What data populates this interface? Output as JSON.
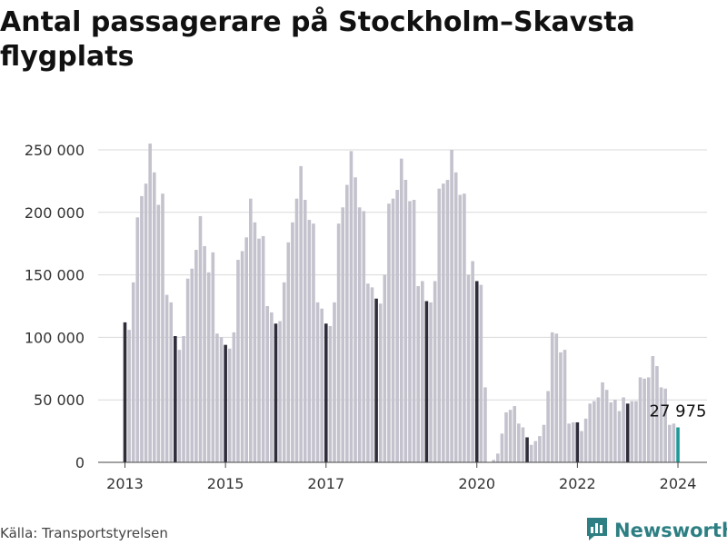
{
  "title": "Antal passagerare på Stockholm–Skavsta flygplats",
  "source": "Källa: Transportstyrelsen",
  "brand": {
    "name": "Newsworthy",
    "icon": "newsworthy-logo-icon"
  },
  "colors": {
    "bar": "#c3c2cd",
    "january": "#2f2d3a",
    "latest": "#1d9a98",
    "grid": "#d9d9d9",
    "brand": "#2d7f83"
  },
  "chart_data": {
    "type": "bar",
    "title": "Antal passagerare på Stockholm–Skavsta flygplats",
    "xlabel": "",
    "ylabel": "",
    "ylim": [
      0,
      260000
    ],
    "yticks": [
      0,
      50000,
      100000,
      150000,
      200000,
      250000
    ],
    "ytick_labels": [
      "0",
      "50 000",
      "100 000",
      "150 000",
      "200 000",
      "250 000"
    ],
    "xtick_labels": [
      "2013",
      "2015",
      "2017",
      "2020",
      "2022",
      "2024"
    ],
    "grid": true,
    "callout": {
      "label": "27 975",
      "value": 27975
    },
    "series": [
      {
        "year": 2013,
        "values": [
          112000,
          106000,
          144000,
          196000,
          213000,
          223000,
          255000,
          232000,
          206000,
          215000,
          134000,
          128000
        ]
      },
      {
        "year": 2014,
        "values": [
          101000,
          90000,
          101000,
          147000,
          155000,
          170000,
          197000,
          173000,
          152000,
          168000,
          103000,
          100000
        ]
      },
      {
        "year": 2015,
        "values": [
          94000,
          91000,
          104000,
          162000,
          169000,
          180000,
          211000,
          192000,
          179000,
          181000,
          125000,
          120000
        ]
      },
      {
        "year": 2016,
        "values": [
          111000,
          113000,
          144000,
          176000,
          192000,
          211000,
          237000,
          210000,
          194000,
          191000,
          128000,
          123000
        ]
      },
      {
        "year": 2017,
        "values": [
          111000,
          109000,
          128000,
          191000,
          204000,
          222000,
          249000,
          228000,
          204000,
          201000,
          143000,
          140000
        ]
      },
      {
        "year": 2018,
        "values": [
          131000,
          127000,
          150000,
          207000,
          211000,
          218000,
          243000,
          226000,
          209000,
          210000,
          141000,
          145000
        ]
      },
      {
        "year": 2019,
        "values": [
          129000,
          128000,
          145000,
          219000,
          223000,
          226000,
          250000,
          232000,
          214000,
          215000,
          150000,
          161000
        ]
      },
      {
        "year": 2020,
        "values": [
          145000,
          142000,
          60000,
          0,
          2000,
          7000,
          23000,
          40000,
          42000,
          45000,
          31000,
          28000
        ]
      },
      {
        "year": 2021,
        "values": [
          20000,
          14000,
          17000,
          21000,
          30000,
          57000,
          104000,
          103000,
          88000,
          90000,
          31000,
          32000
        ]
      },
      {
        "year": 2022,
        "values": [
          32000,
          25000,
          35000,
          47000,
          49000,
          52000,
          64000,
          58000,
          48000,
          50000,
          41000,
          52000
        ]
      },
      {
        "year": 2023,
        "values": [
          47000,
          49000,
          49000,
          68000,
          67000,
          68000,
          85000,
          77000,
          60000,
          59000,
          30000,
          31000
        ]
      },
      {
        "year": 2024,
        "values": [
          27975
        ]
      }
    ]
  }
}
